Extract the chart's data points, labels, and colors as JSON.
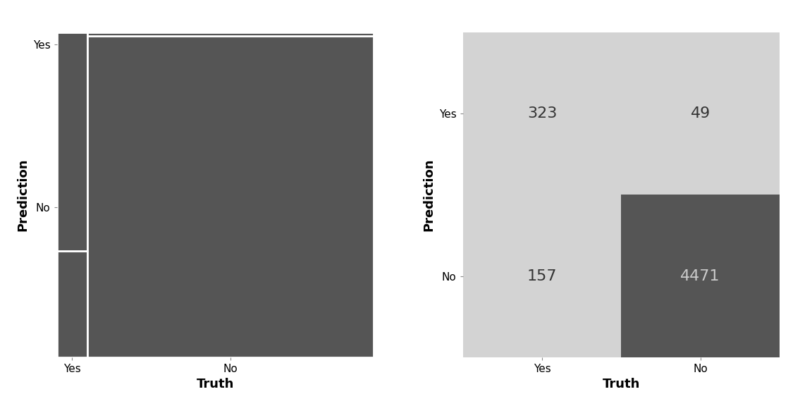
{
  "cm_values": [
    [
      323,
      49
    ],
    [
      157,
      4471
    ]
  ],
  "truth_labels": [
    "Yes",
    "No"
  ],
  "pred_labels": [
    "Yes",
    "No"
  ],
  "xlabel": "Truth",
  "ylabel": "Prediction",
  "dark_cell_color": "#555555",
  "light_cell_color": "#d3d3d3",
  "mosaic_bg": "#555555",
  "mosaic_line_color": "#ffffff",
  "text_color_dark": "#333333",
  "axis_label_fontsize": 13,
  "tick_fontsize": 11,
  "value_fontsize": 16,
  "figure_bg": "#ffffff"
}
